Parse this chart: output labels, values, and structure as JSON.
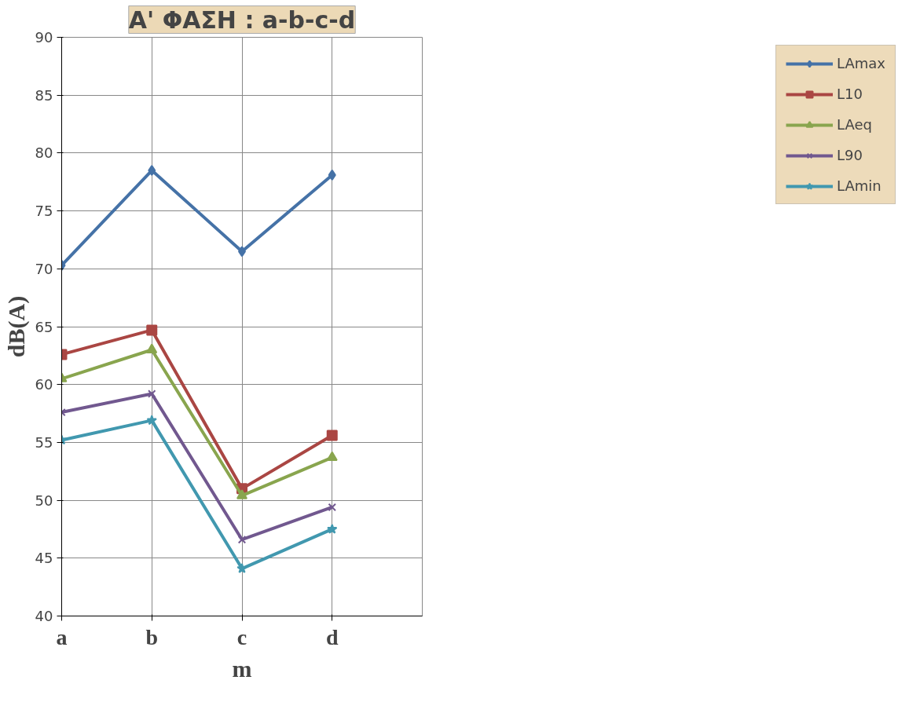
{
  "chart_data": {
    "type": "line",
    "title": "A' ΦΑΣΗ : a-b-c-d",
    "xlabel": "m",
    "ylabel": "dB(A)",
    "categories": [
      "a",
      "b",
      "c",
      "d"
    ],
    "ylim": [
      40,
      90
    ],
    "yticks": [
      40,
      45,
      50,
      55,
      60,
      65,
      70,
      75,
      80,
      85,
      90
    ],
    "grid": true,
    "legend": "right",
    "line_style": "solid",
    "series": [
      {
        "name": "LAmax",
        "color": "#4572a7",
        "marker": "diamond",
        "values": [
          70.3,
          78.5,
          71.5,
          78.1
        ]
      },
      {
        "name": "L10",
        "color": "#aa4643",
        "marker": "square",
        "values": [
          62.6,
          64.7,
          51.0,
          55.6
        ]
      },
      {
        "name": "LAeq",
        "color": "#89a54e",
        "marker": "triangle",
        "values": [
          60.5,
          63.0,
          50.4,
          53.7
        ]
      },
      {
        "name": "L90",
        "color": "#71588f",
        "marker": "cross",
        "values": [
          57.6,
          59.2,
          46.6,
          49.4
        ]
      },
      {
        "name": "LAmin",
        "color": "#4198af",
        "marker": "star",
        "values": [
          55.2,
          56.9,
          44.1,
          47.5
        ]
      }
    ]
  }
}
